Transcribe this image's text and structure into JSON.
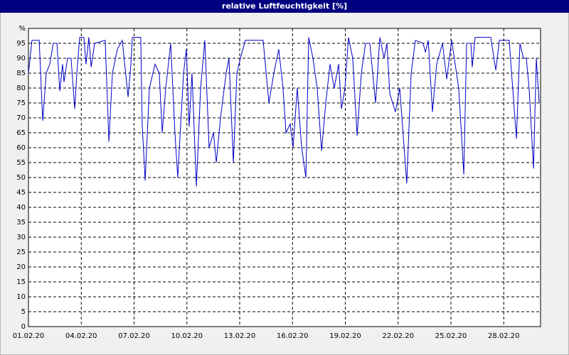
{
  "chart_data": {
    "type": "line",
    "title": "relative Luftfeuchtigkeit [%]",
    "xlim": [
      0,
      29.09
    ],
    "ylim": [
      0,
      100
    ],
    "xticks": [
      {
        "value": 0,
        "label": "01.02.20"
      },
      {
        "value": 3,
        "label": "04.02.20"
      },
      {
        "value": 6,
        "label": "07.02.20"
      },
      {
        "value": 9,
        "label": "10.02.20"
      },
      {
        "value": 12,
        "label": "13.02.20"
      },
      {
        "value": 15,
        "label": "16.02.20"
      },
      {
        "value": 18,
        "label": "19.02.20"
      },
      {
        "value": 21,
        "label": "22.02.20"
      },
      {
        "value": 24,
        "label": "25.02.20"
      },
      {
        "value": 27,
        "label": "28.02.20"
      }
    ],
    "yticks": [
      0,
      5,
      10,
      15,
      20,
      25,
      30,
      35,
      40,
      45,
      50,
      55,
      60,
      65,
      70,
      75,
      80,
      85,
      90,
      95,
      {
        "value": 100,
        "label": "%"
      }
    ],
    "grid": true,
    "series": [
      {
        "color": "#0000c8",
        "x": [
          0,
          0.2,
          0.48,
          0.61,
          0.81,
          1.01,
          1.21,
          1.41,
          1.62,
          1.78,
          1.94,
          2.02,
          2.22,
          2.42,
          2.63,
          2.75,
          2.91,
          3.15,
          3.27,
          3.43,
          3.56,
          3.76,
          4.36,
          4.57,
          4.77,
          5.05,
          5.33,
          5.66,
          5.82,
          5.9,
          6.38,
          6.46,
          6.63,
          6.87,
          7.19,
          7.43,
          7.6,
          7.8,
          8.08,
          8.32,
          8.48,
          8.81,
          8.97,
          9.13,
          9.29,
          9.54,
          9.78,
          10.02,
          10.26,
          10.51,
          10.67,
          10.91,
          11.23,
          11.39,
          11.64,
          11.84,
          12.04,
          12.32,
          12.93,
          13.33,
          13.66,
          13.94,
          14.22,
          14.46,
          14.63,
          14.87,
          15.03,
          15.27,
          15.52,
          15.76,
          15.92,
          16.16,
          16.4,
          16.65,
          16.89,
          17.13,
          17.37,
          17.62,
          17.78,
          17.98,
          18.18,
          18.42,
          18.67,
          18.91,
          19.15,
          19.39,
          19.72,
          19.96,
          20.2,
          20.36,
          20.53,
          20.85,
          21.09,
          21.49,
          21.74,
          21.98,
          22.42,
          22.55,
          22.71,
          22.95,
          23.19,
          23.52,
          23.76,
          24.04,
          24.44,
          24.73,
          24.89,
          25.13,
          25.21,
          25.37,
          26.26,
          26.55,
          26.75,
          27.31,
          27.47,
          27.72,
          27.92,
          28.12,
          28.28,
          28.44,
          28.69,
          28.85,
          29.01
        ],
        "values": [
          85,
          96,
          96,
          96,
          69,
          85,
          88,
          95,
          95,
          79,
          88,
          82,
          90,
          90,
          73,
          85,
          97,
          97,
          88,
          97,
          87,
          95,
          96,
          62,
          85,
          93,
          96,
          77,
          88,
          97,
          97,
          68,
          49,
          80,
          88,
          85,
          65,
          80,
          95,
          65,
          50,
          85,
          93,
          67,
          85,
          47,
          80,
          96,
          60,
          65,
          55,
          70,
          85,
          90,
          55,
          85,
          90,
          96,
          96,
          96,
          75,
          85,
          93,
          80,
          65,
          68,
          60,
          80,
          60,
          50,
          97,
          90,
          80,
          59,
          75,
          88,
          80,
          88,
          73,
          80,
          97,
          90,
          64,
          85,
          95,
          95,
          75,
          97,
          90,
          95,
          78,
          72,
          80,
          48,
          85,
          96,
          95,
          92,
          96,
          72,
          88,
          95,
          83,
          96,
          80,
          51,
          95,
          95,
          87,
          97,
          97,
          86,
          96,
          96,
          83,
          63,
          95,
          90,
          90,
          80,
          53,
          90,
          75
        ]
      }
    ]
  }
}
